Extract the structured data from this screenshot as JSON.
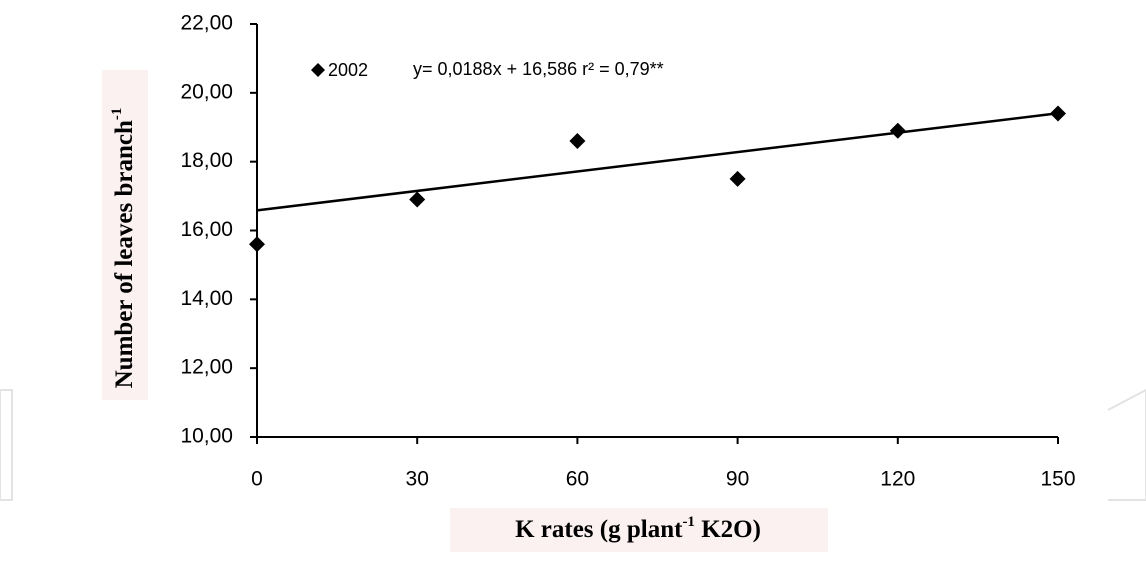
{
  "chart_data": {
    "type": "scatter",
    "x": [
      0,
      30,
      60,
      90,
      120,
      150
    ],
    "series": [
      {
        "name": "2002",
        "color": "#000000",
        "values": [
          15.6,
          16.9,
          18.6,
          17.5,
          18.9,
          19.4
        ]
      }
    ],
    "trendline": {
      "slope": 0.0188,
      "intercept": 16.586,
      "color": "#000000"
    },
    "annotation": "y= 0,0188x + 16,586 r² = 0,79**",
    "xlabel": [
      "K rates (g plant",
      "-1",
      " K2O)"
    ],
    "ylabel": [
      "Number of leaves branch",
      "-1"
    ],
    "xlim": [
      0,
      150
    ],
    "xticks": [
      0,
      30,
      60,
      90,
      120,
      150
    ],
    "ylim": [
      10,
      22
    ],
    "yticks": [
      {
        "value": 10,
        "label": "10,00"
      },
      {
        "value": 12,
        "label": "12,00"
      },
      {
        "value": 14,
        "label": "14,00"
      },
      {
        "value": 16,
        "label": "16,00"
      },
      {
        "value": 18,
        "label": "18,00"
      },
      {
        "value": 20,
        "label": "20,00"
      },
      {
        "value": 22,
        "label": "22,00"
      }
    ],
    "grid": false
  }
}
